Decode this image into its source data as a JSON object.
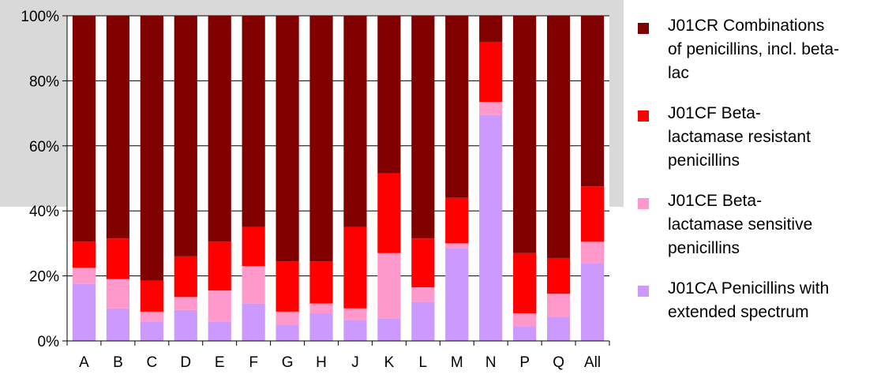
{
  "chart_data": {
    "type": "bar",
    "stacked": true,
    "normalized": true,
    "categories": [
      "A",
      "B",
      "C",
      "D",
      "E",
      "F",
      "G",
      "H",
      "J",
      "K",
      "L",
      "M",
      "N",
      "P",
      "Q",
      "All"
    ],
    "series": [
      {
        "name": "J01CA Penicillins with extended spectrum",
        "color": "#cc99ff",
        "values": [
          17.5,
          10,
          6,
          9.5,
          6,
          11.5,
          5,
          8.5,
          6.5,
          7,
          12,
          28.5,
          69.5,
          4.5,
          7.5,
          24
        ]
      },
      {
        "name": "J01CE Beta-lactamase sensitive penicillins",
        "color": "#ff99cc",
        "values": [
          5,
          9,
          3,
          4,
          9.5,
          11.5,
          4,
          3,
          3.5,
          20,
          4.5,
          1.5,
          4,
          4,
          7,
          6.5
        ]
      },
      {
        "name": "J01CF Beta-lactamase resistant penicillins",
        "color": "#ff0000",
        "values": [
          8,
          12.5,
          9.5,
          12.5,
          15,
          12,
          15.5,
          13,
          25,
          24.5,
          15,
          14,
          18.5,
          18.5,
          11,
          17
        ]
      },
      {
        "name": "J01CR Combinations of penicillins, incl. beta-lac",
        "color": "#800000",
        "values": [
          69.5,
          68.5,
          81.5,
          74,
          69.5,
          65,
          75.5,
          75.5,
          65,
          48.5,
          68.5,
          56,
          8,
          73,
          74.5,
          52.5
        ]
      }
    ],
    "ylim": [
      0,
      100
    ],
    "yticks": [
      "0%",
      "20%",
      "40%",
      "60%",
      "80%",
      "100%"
    ],
    "grid": true,
    "legend_position": "right",
    "legend_entries": [
      {
        "line1": "J01CR Combinations",
        "line2": "of penicillins, incl. beta-",
        "line3": "lac",
        "color": "#800000"
      },
      {
        "line1": "J01CF Beta-",
        "line2": "lactamase resistant",
        "line3": "penicillins",
        "color": "#ff0000"
      },
      {
        "line1": "J01CE Beta-",
        "line2": "lactamase sensitive",
        "line3": "penicillins",
        "color": "#ff99cc"
      },
      {
        "line1": "J01CA Penicillins with",
        "line2": "extended spectrum",
        "line3": "",
        "color": "#cc99ff"
      }
    ],
    "plot_background": "#d9d9d9"
  }
}
